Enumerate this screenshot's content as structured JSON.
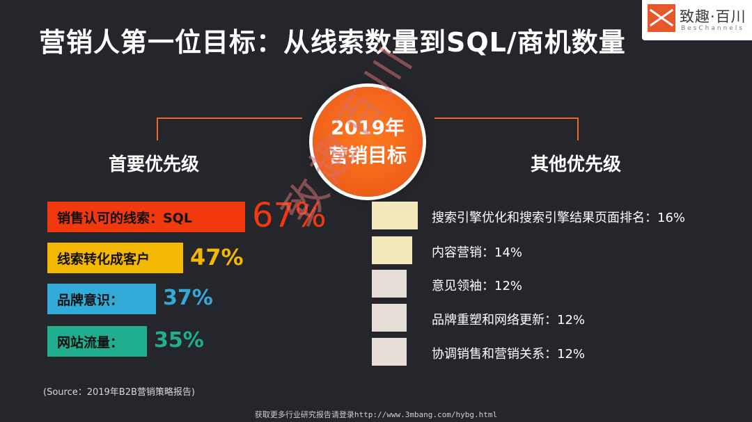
{
  "title": "营销人第一位目标：从线索数量到SQL/商机数量",
  "logo": {
    "name": "致趣·百川",
    "subtitle": "BesChannels"
  },
  "center": {
    "line1": "2019年",
    "line2": "营销目标"
  },
  "headings": {
    "primary": "首要优先级",
    "secondary": "其他优先级"
  },
  "watermark": "致趣百川",
  "source": "(Source：2019年B2B营销策略报告)",
  "footer": "获取更多行业研究报告请登录http://www.3mbang.com/hybg.html",
  "colors": {
    "background": "#24262b",
    "accent_orange": "#f26a1b",
    "red": "#f2390e",
    "yellow": "#f5b800",
    "blue": "#33abd9",
    "teal": "#1fae8e",
    "pale_yellow": "#f4e9bd",
    "pale_gray": "#e6dfd8"
  },
  "chart_data": [
    {
      "type": "bar",
      "title": "首要优先级",
      "categories": [
        "销售认可的线索：SQL",
        "线索转化成客户",
        "品牌意识：",
        "网站流量："
      ],
      "values": [
        67,
        47,
        37,
        35
      ],
      "value_labels": [
        "67%",
        "47%",
        "37%",
        "35%"
      ],
      "colors": [
        "#f2390e",
        "#f5b800",
        "#33abd9",
        "#1fae8e"
      ]
    },
    {
      "type": "bar",
      "title": "其他优先级",
      "categories": [
        "搜索引擎优化和搜索引擎结果页面排名：16%",
        "内容营销：14%",
        "意见领袖：12%",
        "品牌重塑和网络更新：12%",
        "协调销售和营销关系：12%"
      ],
      "values": [
        16,
        14,
        12,
        12,
        12
      ],
      "colors": [
        "#f4e9bd",
        "#f4e9bd",
        "#e6dfd8",
        "#e6dfd8",
        "#e6dfd8"
      ]
    }
  ]
}
